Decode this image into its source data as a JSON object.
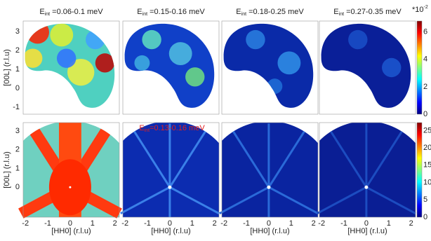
{
  "columns": [
    {
      "title_main": "E",
      "title_sub": "int",
      "title_rest": " =0.06-0.1 meV"
    },
    {
      "title_main": "E",
      "title_sub": "int",
      "title_rest": " =0.15-0.16 meV"
    },
    {
      "title_main": "E",
      "title_sub": "int",
      "title_rest": " =0.18-0.25 meV"
    },
    {
      "title_main": "E",
      "title_sub": "int",
      "title_rest": " =0.27-0.35 meV"
    }
  ],
  "overlay_label": {
    "main": "E",
    "sub": "int",
    "rest": "=0.13-0.16 meV"
  },
  "ylabel": "[00L] (r.l.u)",
  "xlabel": "[HH0] (r.l.u)",
  "xlim": [
    -2.1,
    2.2
  ],
  "xticks": [
    -2,
    -1,
    0,
    1,
    2
  ],
  "top_ylim": [
    -1.37,
    3.55
  ],
  "top_yticks": [
    -1,
    0,
    1,
    2,
    3
  ],
  "bottom_ylim": [
    -1.6,
    3.45
  ],
  "bottom_yticks": [
    0,
    1,
    2,
    3
  ],
  "colorbar_top": {
    "lim": [
      0,
      6.8
    ],
    "ticks": [
      0,
      2,
      4,
      6
    ],
    "multiplier": "*10",
    "exponent": "-2"
  },
  "colorbar_bottom": {
    "lim": [
      0,
      27.3
    ],
    "ticks": [
      0,
      5,
      10,
      15,
      20,
      25
    ]
  }
}
